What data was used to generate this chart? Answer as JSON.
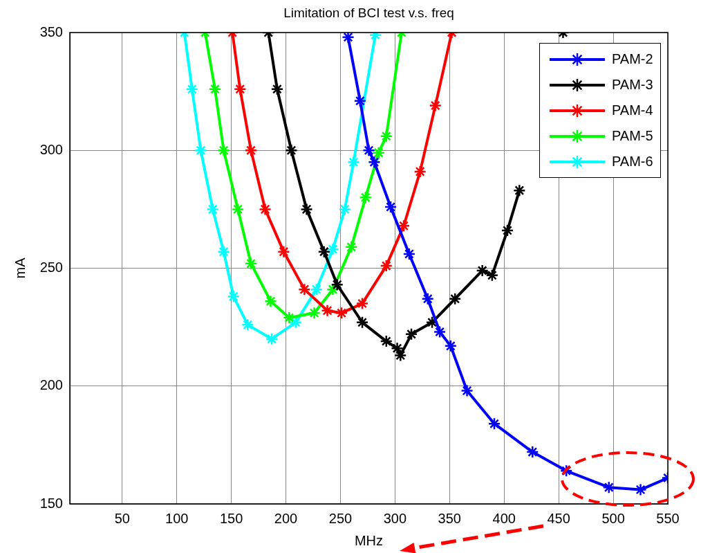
{
  "chart_data": {
    "type": "line",
    "title": "Limitation of BCI test v.s. freq",
    "xlabel": "MHz",
    "ylabel": "mA",
    "xlim": [
      2,
      550
    ],
    "xticks": [
      50,
      100,
      150,
      200,
      250,
      300,
      350,
      400,
      450,
      500,
      550
    ],
    "ylim": [
      150,
      350
    ],
    "yticks": [
      150,
      200,
      250,
      300,
      350
    ],
    "grid": true,
    "legend": "top right",
    "marker": "cross",
    "line_style": "solid",
    "series": [
      {
        "name": "PAM-2",
        "color": "#0000ff",
        "x": [
          257,
          268,
          276,
          281,
          296,
          313,
          330,
          341,
          351,
          366,
          391,
          426,
          457,
          496,
          525,
          550
        ],
        "values": [
          348,
          321,
          300,
          295,
          276,
          256,
          237,
          223,
          217,
          198,
          184,
          172,
          164,
          157,
          156,
          161
        ]
      },
      {
        "name": "PAM-3",
        "color": "#000000",
        "x": [
          184,
          192,
          205,
          219,
          235,
          247,
          270,
          292,
          302,
          305,
          315,
          334,
          355,
          380,
          389,
          403,
          414,
          435,
          454
        ],
        "values": [
          350,
          326,
          300,
          275,
          257,
          243,
          227,
          219,
          216,
          213,
          222,
          227,
          237,
          249,
          247,
          266,
          283,
          null,
          350
        ]
      },
      {
        "name": "PAM-4",
        "color": "#ff0000",
        "x": [
          151,
          158,
          168,
          181,
          198,
          217,
          238,
          251,
          270,
          292,
          308,
          323,
          337,
          352
        ],
        "values": [
          350,
          326,
          300,
          275,
          257,
          241,
          232,
          231,
          235,
          251,
          268,
          291,
          319,
          350
        ]
      },
      {
        "name": "PAM-5",
        "color": "#00ff00",
        "x": [
          126,
          135,
          143,
          156,
          168,
          186,
          203,
          226,
          243,
          260,
          273,
          285,
          292,
          306
        ],
        "values": [
          350,
          326,
          300,
          275,
          252,
          236,
          229,
          231,
          241,
          259,
          280,
          299,
          306,
          350
        ]
      },
      {
        "name": "PAM-6",
        "color": "#00ffff",
        "x": [
          107,
          114,
          122,
          133,
          143,
          152,
          165,
          187,
          209,
          228,
          243,
          254,
          262,
          282
        ],
        "values": [
          350,
          326,
          300,
          275,
          257,
          238,
          226,
          220,
          227,
          241,
          258,
          275,
          295,
          349
        ]
      }
    ]
  }
}
